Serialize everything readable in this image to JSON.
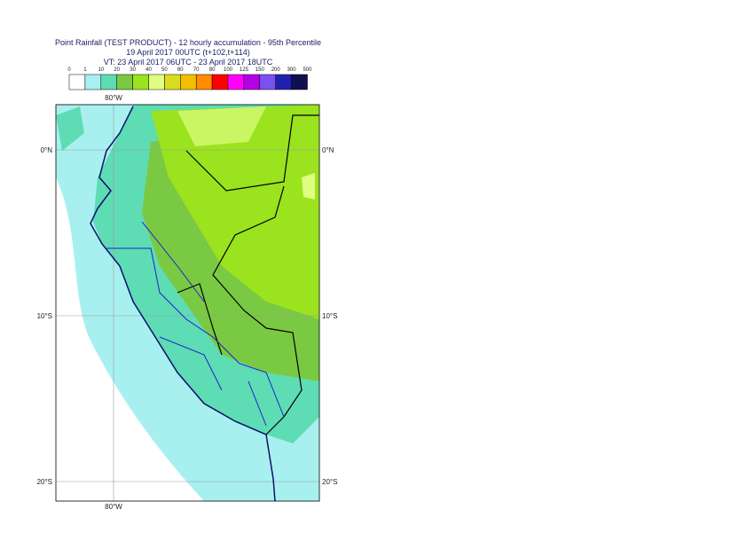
{
  "header": {
    "title": [
      "Point Rainfall (TEST PRODUCT) - 12 hourly accumulation - 95th Percentile",
      "19 April 2017 00UTC (t+102,t+114)",
      "VT: 23 April 2017 06UTC - 23 April 2017 18UTC"
    ]
  },
  "legend": {
    "labels": [
      "0",
      "1",
      "10",
      "20",
      "30",
      "40",
      "50",
      "60",
      "70",
      "80",
      "100",
      "125",
      "150",
      "200",
      "300",
      "500"
    ],
    "colors": [
      "#ffffff",
      "#a8f0f0",
      "#5edcb4",
      "#7ac943",
      "#9be21f",
      "#e0ff80",
      "#dcdc1e",
      "#f0c000",
      "#ff8c00",
      "#ff0000",
      "#ff00ff",
      "#b400e6",
      "#7b50f0",
      "#2020b0",
      "#101050"
    ]
  },
  "map": {
    "lon_labels": [
      "80°W",
      "80°W"
    ],
    "lat_labels_left": [
      "0°N",
      "10°S",
      "20°S"
    ],
    "lat_labels_right": [
      "0°N",
      "10°S",
      "20°S"
    ]
  }
}
